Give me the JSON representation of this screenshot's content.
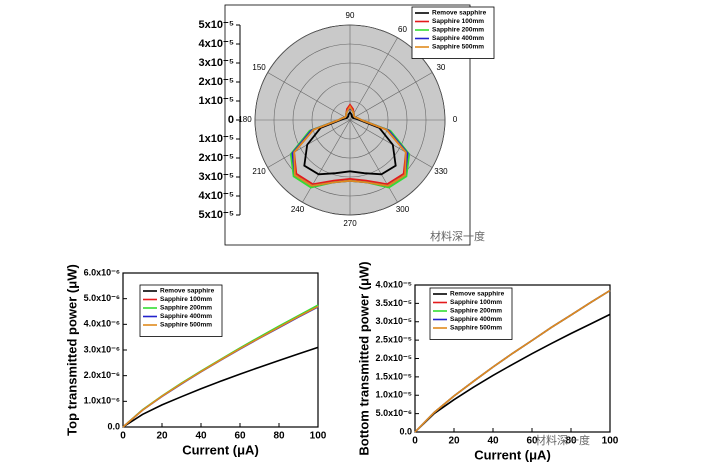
{
  "watermark": "材料深一度",
  "chart_data": [
    {
      "type": "polar",
      "theta": [
        0,
        15,
        30,
        45,
        60,
        75,
        90,
        105,
        120,
        135,
        150,
        165,
        180,
        195,
        210,
        225,
        240,
        255,
        270,
        285,
        300,
        315,
        330,
        345
      ],
      "rlim": [
        0,
        5e-05
      ],
      "rticks": [
        0,
        {
          "value": 1e-05,
          "label": "1x10⁻⁵"
        },
        {
          "value": 2e-05,
          "label": "2x10⁻⁵"
        },
        {
          "value": 3e-05,
          "label": "3x10⁻⁵"
        },
        {
          "value": 4e-05,
          "label": "4x10⁻⁵"
        },
        {
          "value": 5e-05,
          "label": "5x10⁻⁵"
        }
      ],
      "thetaticks": [
        0,
        30,
        60,
        90,
        150,
        180,
        210,
        240,
        270,
        300,
        330
      ],
      "legend": "upper right",
      "series": [
        {
          "name": "Remove sapphire",
          "color": "#000000",
          "values": [
            5e-06,
            3e-06,
            2e-06,
            2e-06,
            2e-06,
            3e-06,
            4e-06,
            3e-06,
            2e-06,
            2e-06,
            2e-06,
            3e-06,
            5e-06,
            1.6e-05,
            2.6e-05,
            3.4e-05,
            3.3e-05,
            2.9e-05,
            2.7e-05,
            2.9e-05,
            3.3e-05,
            3.4e-05,
            2.6e-05,
            1.6e-05
          ]
        },
        {
          "name": "Sapphire 100mm",
          "color": "#e41a1c",
          "values": [
            6e-06,
            4e-06,
            3e-06,
            3e-06,
            4e-06,
            6e-06,
            8e-06,
            6e-06,
            4e-06,
            3e-06,
            3e-06,
            4e-06,
            6e-06,
            2e-05,
            3.4e-05,
            4e-05,
            3.9e-05,
            3.3e-05,
            3.1e-05,
            3.3e-05,
            3.9e-05,
            4e-05,
            3.4e-05,
            2e-05
          ]
        },
        {
          "name": "Sapphire 200mm",
          "color": "#33dd33",
          "values": [
            6e-06,
            4e-06,
            3e-06,
            3e-06,
            4e-06,
            5e-06,
            6e-06,
            5e-06,
            4e-06,
            3e-06,
            3e-06,
            4e-06,
            6e-06,
            2.2e-05,
            3.6e-05,
            4.2e-05,
            4.1e-05,
            3.4e-05,
            3.2e-05,
            3.4e-05,
            4.1e-05,
            4.2e-05,
            3.6e-05,
            2.2e-05
          ]
        },
        {
          "name": "Sapphire 400mm",
          "color": "#2222cc",
          "values": [
            6e-06,
            4e-06,
            3e-06,
            3e-06,
            4e-06,
            5e-06,
            6e-06,
            5e-06,
            4e-06,
            3e-06,
            3e-06,
            4e-06,
            6e-06,
            2.1e-05,
            3.5e-05,
            4.1e-05,
            4e-05,
            3.4e-05,
            3.2e-05,
            3.4e-05,
            4e-05,
            4.1e-05,
            3.5e-05,
            2.1e-05
          ]
        },
        {
          "name": "Sapphire 500mm",
          "color": "#e08a1e",
          "values": [
            6e-06,
            4e-06,
            3e-06,
            3e-06,
            4e-06,
            5e-06,
            7e-06,
            5e-06,
            4e-06,
            3e-06,
            3e-06,
            4e-06,
            6e-06,
            2e-05,
            3.4e-05,
            4.1e-05,
            4e-05,
            3.4e-05,
            3.2e-05,
            3.4e-05,
            4e-05,
            4.1e-05,
            3.4e-05,
            2e-05
          ]
        }
      ]
    },
    {
      "type": "line",
      "xlabel": "Current (μA)",
      "ylabel": "Top transmitted power (μW)",
      "x": [
        0,
        10,
        20,
        30,
        40,
        50,
        60,
        70,
        80,
        90,
        100
      ],
      "xlim": [
        0,
        100
      ],
      "xticks": [
        0,
        20,
        40,
        60,
        80,
        100
      ],
      "ylim": [
        0,
        6e-06
      ],
      "yticks": [
        {
          "value": 0,
          "label": "0.0"
        },
        {
          "value": 1e-06,
          "label": "1.0x10⁻⁶"
        },
        {
          "value": 2e-06,
          "label": "2.0x10⁻⁶"
        },
        {
          "value": 3e-06,
          "label": "3.0x10⁻⁶"
        },
        {
          "value": 4e-06,
          "label": "4.0x10⁻⁶"
        },
        {
          "value": 5e-06,
          "label": "5.0x10⁻⁶"
        },
        {
          "value": 6e-06,
          "label": "6.0x10⁻⁶"
        }
      ],
      "legend": "upper left",
      "series": [
        {
          "name": "Remove sapphire",
          "color": "#000000",
          "values": [
            0,
            4.9e-07,
            8.6e-07,
            1.18e-06,
            1.49e-06,
            1.78e-06,
            2.06e-06,
            2.33e-06,
            2.59e-06,
            2.85e-06,
            3.1e-06
          ]
        },
        {
          "name": "Sapphire 100mm",
          "color": "#e41a1c",
          "values": [
            0,
            6.6e-07,
            1.2e-06,
            1.7e-06,
            2.17e-06,
            2.62e-06,
            3.06e-06,
            3.49e-06,
            3.91e-06,
            4.32e-06,
            4.72e-06
          ]
        },
        {
          "name": "Sapphire 200mm",
          "color": "#33dd33",
          "values": [
            0,
            6.7e-07,
            1.21e-06,
            1.71e-06,
            2.18e-06,
            2.63e-06,
            3.08e-06,
            3.51e-06,
            3.93e-06,
            4.34e-06,
            4.75e-06
          ]
        },
        {
          "name": "Sapphire 400mm",
          "color": "#2222cc",
          "values": [
            0,
            6.6e-07,
            1.19e-06,
            1.68e-06,
            2.15e-06,
            2.6e-06,
            3.04e-06,
            3.46e-06,
            3.87e-06,
            4.28e-06,
            4.68e-06
          ]
        },
        {
          "name": "Sapphire 500mm",
          "color": "#e08a1e",
          "values": [
            0,
            6.6e-07,
            1.2e-06,
            1.69e-06,
            2.16e-06,
            2.61e-06,
            3.05e-06,
            3.47e-06,
            3.89e-06,
            4.3e-06,
            4.7e-06
          ]
        }
      ]
    },
    {
      "type": "line",
      "xlabel": "Current (μA)",
      "ylabel": "Bottom transmitted power (μW)",
      "x": [
        0,
        10,
        20,
        30,
        40,
        50,
        60,
        70,
        80,
        90,
        100
      ],
      "xlim": [
        0,
        100
      ],
      "xticks": [
        0,
        20,
        40,
        60,
        80,
        100
      ],
      "ylim": [
        0,
        4e-05
      ],
      "yticks": [
        {
          "value": 0,
          "label": "0.0"
        },
        {
          "value": 5e-06,
          "label": "5.0x10⁻⁶"
        },
        {
          "value": 1e-05,
          "label": "1.0x10⁻⁵"
        },
        {
          "value": 1.5e-05,
          "label": "1.5x10⁻⁵"
        },
        {
          "value": 2e-05,
          "label": "2.0x10⁻⁵"
        },
        {
          "value": 2.5e-05,
          "label": "2.5x10⁻⁵"
        },
        {
          "value": 3e-05,
          "label": "3.0x10⁻⁵"
        },
        {
          "value": 3.5e-05,
          "label": "3.5x10⁻⁵"
        },
        {
          "value": 4e-05,
          "label": "4.0x10⁻⁵"
        }
      ],
      "legend": "upper left",
      "series": [
        {
          "name": "Remove sapphire",
          "color": "#000000",
          "values": [
            0,
            5.1e-06,
            8.8e-06,
            1.22e-05,
            1.54e-05,
            1.84e-05,
            2.13e-05,
            2.41e-05,
            2.68e-05,
            2.94e-05,
            3.2e-05
          ]
        },
        {
          "name": "Sapphire 100mm",
          "color": "#e41a1c",
          "values": [
            0,
            5.4e-06,
            9.8e-06,
            1.38e-05,
            1.77e-05,
            2.14e-05,
            2.49e-05,
            2.85e-05,
            3.18e-05,
            3.52e-05,
            3.85e-05
          ]
        },
        {
          "name": "Sapphire 200mm",
          "color": "#33dd33",
          "values": [
            0,
            5.4e-06,
            9.8e-06,
            1.38e-05,
            1.77e-05,
            2.14e-05,
            2.49e-05,
            2.85e-05,
            3.18e-05,
            3.52e-05,
            3.85e-05
          ]
        },
        {
          "name": "Sapphire 400mm",
          "color": "#2222cc",
          "values": [
            0,
            5.4e-06,
            9.8e-06,
            1.38e-05,
            1.77e-05,
            2.14e-05,
            2.49e-05,
            2.85e-05,
            3.18e-05,
            3.52e-05,
            3.85e-05
          ]
        },
        {
          "name": "Sapphire 500mm",
          "color": "#e08a1e",
          "values": [
            0,
            5.4e-06,
            9.8e-06,
            1.38e-05,
            1.77e-05,
            2.14e-05,
            2.49e-05,
            2.85e-05,
            3.18e-05,
            3.52e-05,
            3.85e-05
          ]
        }
      ]
    }
  ]
}
